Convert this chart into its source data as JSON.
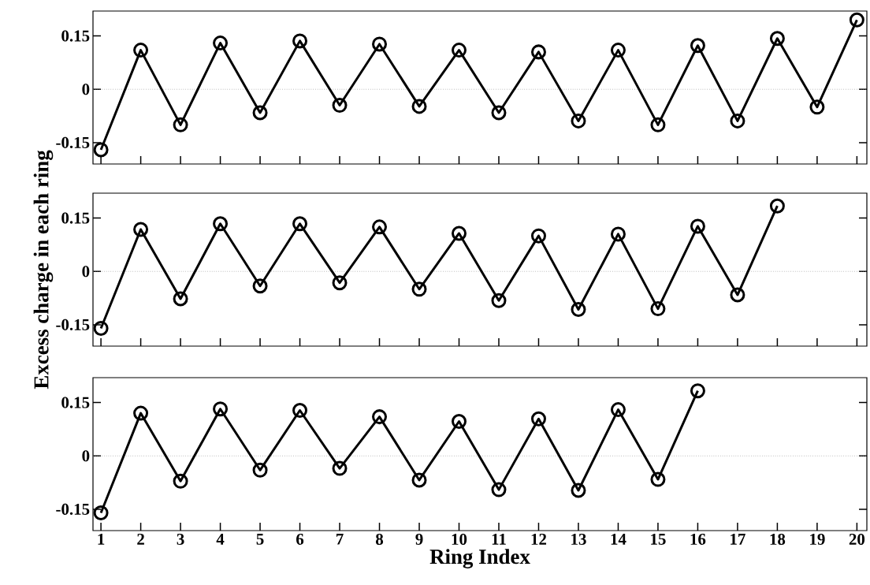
{
  "chart_data": [
    {
      "type": "line",
      "x": [
        1,
        2,
        3,
        4,
        5,
        6,
        7,
        8,
        9,
        10,
        11,
        12,
        13,
        14,
        15,
        16,
        17,
        18,
        19,
        20
      ],
      "series": [
        {
          "color": "#000000",
          "values": [
            -0.17,
            0.11,
            -0.1,
            0.13,
            -0.066,
            0.136,
            -0.045,
            0.127,
            -0.048,
            0.11,
            -0.066,
            0.105,
            -0.089,
            0.11,
            -0.1,
            0.123,
            -0.089,
            0.143,
            -0.05,
            0.195
          ]
        }
      ],
      "xlim": [
        0.8,
        20.25
      ],
      "ylim": [
        -0.21,
        0.22
      ],
      "xticks": [
        1,
        2,
        3,
        4,
        5,
        6,
        7,
        8,
        9,
        10,
        11,
        12,
        13,
        14,
        15,
        16,
        17,
        18,
        19,
        20
      ],
      "yticks": [
        -0.15,
        0,
        0.15
      ],
      "tick_labels": "y",
      "marker": "circle",
      "line_style": "solid",
      "grid": false,
      "ref_lines": [
        {
          "axis": "y",
          "value": 0,
          "color": "#999999",
          "line_style": "dotted"
        }
      ]
    },
    {
      "type": "line",
      "ylabel": "Excess charge in each ring",
      "x": [
        1,
        2,
        3,
        4,
        5,
        6,
        7,
        8,
        9,
        10,
        11,
        12,
        13,
        14,
        15,
        16,
        17,
        18
      ],
      "series": [
        {
          "color": "#000000",
          "values": [
            -0.16,
            0.118,
            -0.077,
            0.134,
            -0.041,
            0.134,
            -0.032,
            0.125,
            -0.05,
            0.107,
            -0.082,
            0.1,
            -0.107,
            0.105,
            -0.105,
            0.127,
            -0.066,
            0.184
          ]
        }
      ],
      "xlim": [
        0.8,
        20.25
      ],
      "ylim": [
        -0.21,
        0.22
      ],
      "xticks": [
        1,
        2,
        3,
        4,
        5,
        6,
        7,
        8,
        9,
        10,
        11,
        12,
        13,
        14,
        15,
        16,
        17,
        18,
        19,
        20
      ],
      "yticks": [
        -0.15,
        0,
        0.15
      ],
      "tick_labels": "y",
      "marker": "circle",
      "line_style": "solid",
      "grid": false,
      "ref_lines": [
        {
          "axis": "y",
          "value": 0,
          "color": "#999999",
          "line_style": "dotted"
        }
      ]
    },
    {
      "type": "line",
      "xlabel": "Ring Index",
      "x": [
        1,
        2,
        3,
        4,
        5,
        6,
        7,
        8,
        9,
        10,
        11,
        12,
        13,
        14,
        15,
        16
      ],
      "series": [
        {
          "color": "#000000",
          "values": [
            -0.16,
            0.12,
            -0.071,
            0.132,
            -0.04,
            0.128,
            -0.035,
            0.11,
            -0.068,
            0.097,
            -0.095,
            0.104,
            -0.097,
            0.13,
            -0.066,
            0.183
          ]
        }
      ],
      "xlim": [
        0.8,
        20.25
      ],
      "ylim": [
        -0.21,
        0.22
      ],
      "xticks": [
        1,
        2,
        3,
        4,
        5,
        6,
        7,
        8,
        9,
        10,
        11,
        12,
        13,
        14,
        15,
        16,
        17,
        18,
        19,
        20
      ],
      "yticks": [
        -0.15,
        0,
        0.15
      ],
      "marker": "circle",
      "line_style": "solid",
      "grid": false,
      "ref_lines": [
        {
          "axis": "y",
          "value": 0,
          "color": "#999999",
          "line_style": "dotted"
        }
      ]
    }
  ]
}
